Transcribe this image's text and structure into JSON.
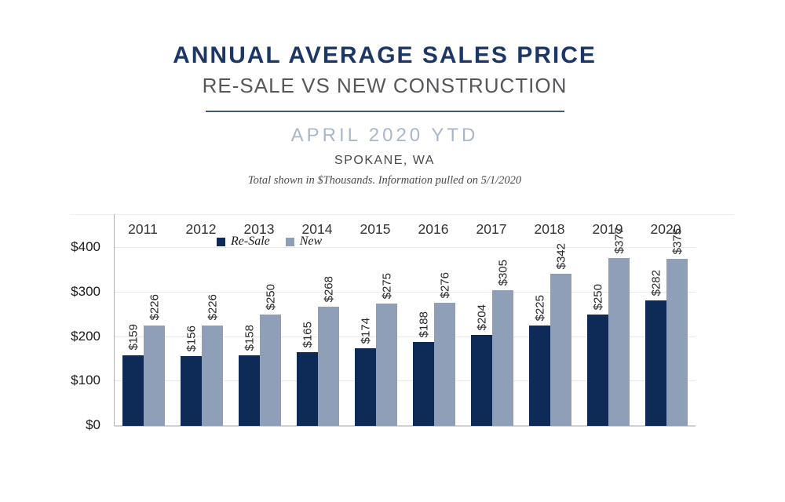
{
  "header": {
    "title": "ANNUAL AVERAGE SALES PRICE",
    "subtitle": "RE-SALE VS NEW CONSTRUCTION",
    "period": "APRIL 2020 YTD",
    "location": "SPOKANE, WA",
    "note": "Total shown in $Thousands. Information pulled on 5/1/2020"
  },
  "colors": {
    "title": "#1c3766",
    "subtitle": "#56575b",
    "period": "#a9b7c9",
    "location": "#48494b",
    "divider": "#44597a",
    "resale_bar": "#0e2a57",
    "new_bar": "#8e9fb7",
    "gridline": "#e9e9e9",
    "axis_line": "#b3b3b3",
    "baseline": "#d0d0d0"
  },
  "chart_data": {
    "type": "bar",
    "title": "Annual Average Sales Price — Re-Sale vs New Construction",
    "subtitle": "April 2020 YTD, Spokane, WA",
    "units": "$Thousands",
    "categories": [
      "2011",
      "2012",
      "2013",
      "2014",
      "2015",
      "2016",
      "2017",
      "2018",
      "2019",
      "2020"
    ],
    "series": [
      {
        "name": "Re-Sale",
        "color": "#0e2a57",
        "values": [
          159,
          156,
          158,
          165,
          174,
          188,
          204,
          225,
          250,
          282
        ]
      },
      {
        "name": "New",
        "color": "#8e9fb7",
        "values": [
          226,
          226,
          250,
          268,
          275,
          276,
          305,
          342,
          377,
          375
        ]
      }
    ],
    "value_prefix": "$",
    "ylim": [
      0,
      475
    ],
    "yticks": [
      0,
      100,
      200,
      300,
      400
    ],
    "ytick_labels": [
      "$0",
      "$100",
      "$200",
      "$300",
      "$400"
    ],
    "grid": true,
    "legend_position": "top-center-inside"
  }
}
